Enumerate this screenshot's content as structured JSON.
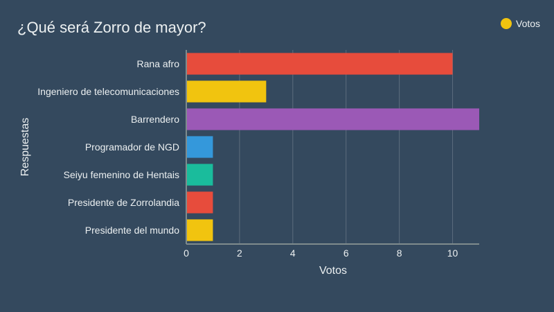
{
  "chart_data": {
    "type": "bar",
    "orientation": "horizontal",
    "title": "¿Qué será Zorro de mayor?",
    "xlabel": "Votos",
    "ylabel": "Respuestas",
    "categories": [
      "Rana afro",
      "Ingeniero de telecomunicaciones",
      "Barrendero",
      "Programador de NGD",
      "Seiyu femenino de Hentais",
      "Presidente de Zorrolandia",
      "Presidente del mundo"
    ],
    "series": [
      {
        "name": "Votos",
        "values": [
          10,
          3,
          11,
          1,
          1,
          1,
          1
        ]
      }
    ],
    "bar_colors": [
      "#e74c3c",
      "#f1c40f",
      "#9b59b6",
      "#3498db",
      "#1abc9c",
      "#e74c3c",
      "#f1c40f"
    ],
    "xlim": [
      0,
      11
    ],
    "xticks": [
      0,
      2,
      4,
      6,
      8,
      10
    ],
    "grid": true,
    "legend": {
      "position": "top-right",
      "color": "#f1c40f"
    }
  }
}
